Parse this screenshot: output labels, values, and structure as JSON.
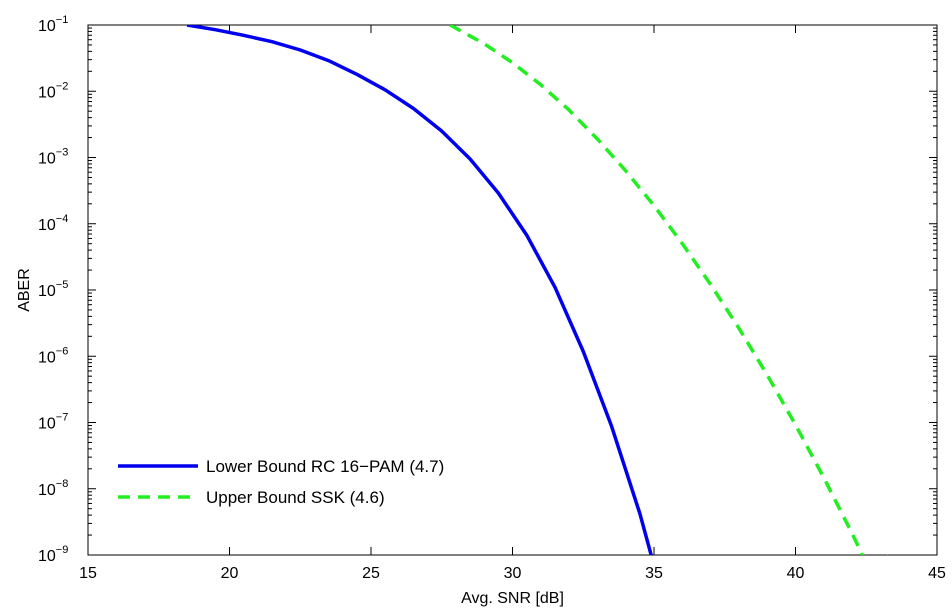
{
  "chart_data": {
    "type": "line",
    "xlabel": "Avg. SNR [dB]",
    "ylabel": "ABER",
    "xlim": [
      15,
      45
    ],
    "ylim": [
      1e-09,
      0.1
    ],
    "yscale": "log",
    "grid": false,
    "xticks": [
      15,
      20,
      25,
      30,
      35,
      40,
      45
    ],
    "yticks": [
      {
        "base": "10",
        "exp": "−9",
        "value": 1e-09
      },
      {
        "base": "10",
        "exp": "−8",
        "value": 1e-08
      },
      {
        "base": "10",
        "exp": "−7",
        "value": 1e-07
      },
      {
        "base": "10",
        "exp": "−6",
        "value": 1e-06
      },
      {
        "base": "10",
        "exp": "−5",
        "value": 1e-05
      },
      {
        "base": "10",
        "exp": "−4",
        "value": 0.0001
      },
      {
        "base": "10",
        "exp": "−3",
        "value": 0.001
      },
      {
        "base": "10",
        "exp": "−2",
        "value": 0.01
      },
      {
        "base": "10",
        "exp": "−1",
        "value": 0.1
      }
    ],
    "legend_position": "bottom-left",
    "series": [
      {
        "name": "Lower Bound RC 16−PAM (4.7)",
        "color": "#0000ee",
        "dash": "solid",
        "x": [
          18.5,
          19.5,
          20.5,
          21.5,
          22.5,
          23.5,
          24.5,
          25.5,
          26.5,
          27.5,
          28.5,
          29.5,
          30.5,
          31.5,
          32.5,
          33.5,
          34.5,
          35.5,
          35.9
        ],
        "y": [
          0.1,
          0.085,
          0.07,
          0.056,
          0.042,
          0.029,
          0.018,
          0.0105,
          0.0055,
          0.0025,
          0.00095,
          0.00029,
          6.75e-05,
          1.1e-05,
          1.18e-06,
          8.75e-08,
          4.2e-09,
          1.15e-10,
          1e-09
        ]
      },
      {
        "name": "Upper Bound SSK (4.6)",
        "color": "#22ee22",
        "dash": "dashed",
        "x": [
          27.8,
          29.0,
          30.0,
          31.0,
          32.0,
          33.0,
          34.0,
          35.0,
          36.0,
          37.0,
          38.0,
          39.0,
          40.0,
          41.0,
          42.0,
          43.0,
          43.3
        ],
        "y": [
          0.1,
          0.052,
          0.027,
          0.0125,
          0.0052,
          0.0019,
          0.00063,
          0.000188,
          5.02e-05,
          1.21e-05,
          2.65e-06,
          5.22e-07,
          9.23e-08,
          1.47e-08,
          2.11e-09,
          2.72e-10,
          1e-09
        ]
      }
    ]
  }
}
